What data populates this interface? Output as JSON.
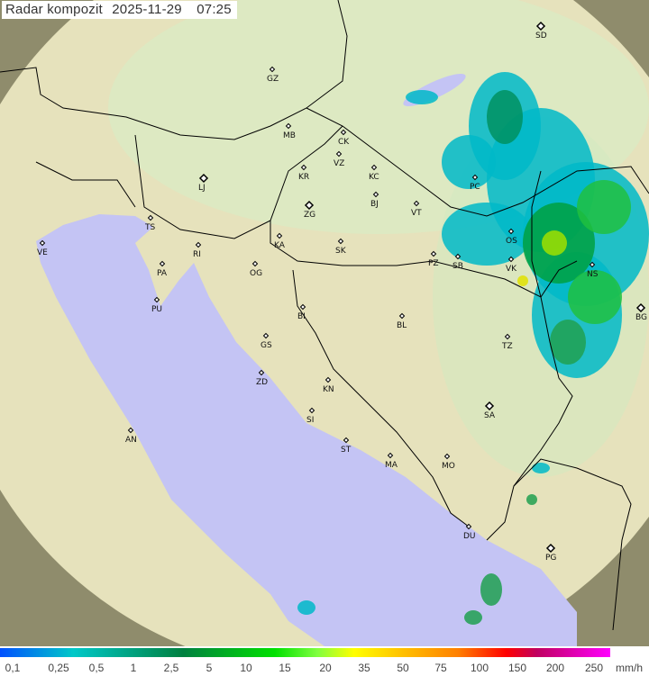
{
  "title": {
    "label": "Radar kompozit",
    "date": "2025-11-29",
    "time": "07:25"
  },
  "legend": {
    "unit": "mm/h",
    "values": [
      "0,1",
      "0,25",
      "0,5",
      "1",
      "2,5",
      "5",
      "10",
      "15",
      "20",
      "35",
      "50",
      "75",
      "100",
      "150",
      "200",
      "250"
    ],
    "colors": [
      "#0050ff",
      "#00c8c8",
      "#008040",
      "#00e000",
      "#ffff00",
      "#ff8000",
      "#ff0000",
      "#ff00ff"
    ]
  },
  "map": {
    "colors": {
      "land": "#e6e2bc",
      "sea": "#c4c4f4",
      "outside_coverage": "#8f8c6c",
      "border": "#000000"
    },
    "cities": [
      "GZ",
      "MB",
      "CK",
      "VZ",
      "KR",
      "KC",
      "LJ",
      "ZG",
      "BJ",
      "VT",
      "PC",
      "SD",
      "TS",
      "VE",
      "RI",
      "KA",
      "SK",
      "PA",
      "OG",
      "PZ",
      "SB",
      "OS",
      "VK",
      "NS",
      "BG",
      "PU",
      "BI",
      "BL",
      "TZ",
      "GS",
      "ZD",
      "KN",
      "SI",
      "SA",
      "AN",
      "ST",
      "MA",
      "MO",
      "DU",
      "PG"
    ]
  }
}
